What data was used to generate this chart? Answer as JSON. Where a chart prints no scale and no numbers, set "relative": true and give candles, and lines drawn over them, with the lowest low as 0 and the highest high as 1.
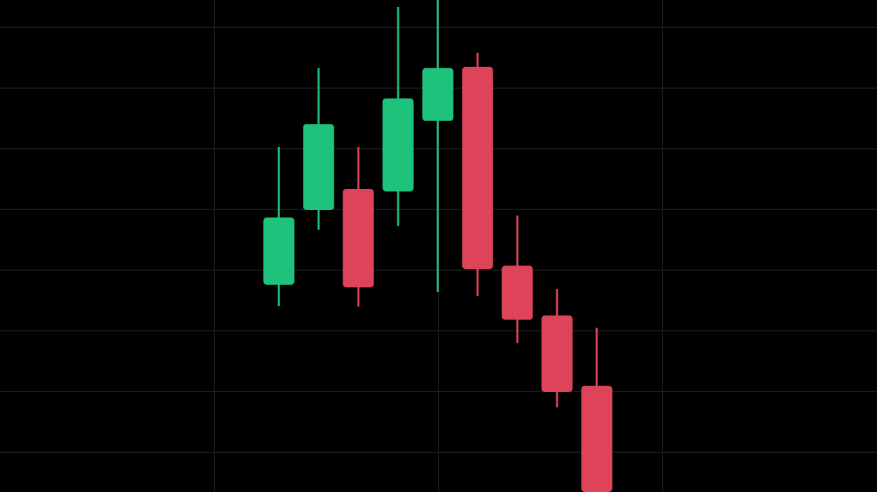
{
  "chart_data": {
    "type": "candlestick",
    "categories": [
      null,
      null,
      null,
      null,
      null,
      null,
      null,
      null,
      null
    ],
    "ohlc": [
      [
        0.421,
        0.701,
        0.378,
        0.558
      ],
      [
        0.573,
        0.862,
        0.533,
        0.748
      ],
      [
        0.616,
        0.701,
        0.377,
        0.416
      ],
      [
        0.611,
        0.986,
        0.541,
        0.8
      ],
      [
        0.754,
        1,
        0.406,
        0.862
      ],
      [
        0.864,
        0.893,
        0.398,
        0.453
      ],
      [
        0.46,
        0.562,
        0.303,
        0.35
      ],
      [
        0.359,
        0.413,
        0.172,
        0.203
      ],
      [
        0.216,
        0.334,
        0,
        0
      ]
    ],
    "colors": [
      "#1fc27a",
      "#1fc27a",
      "#de4459",
      "#1fc27a",
      "#1fc27a",
      "#de4459",
      "#de4459",
      "#de4459",
      "#de4459"
    ],
    "relative": true,
    "grid": true
  }
}
